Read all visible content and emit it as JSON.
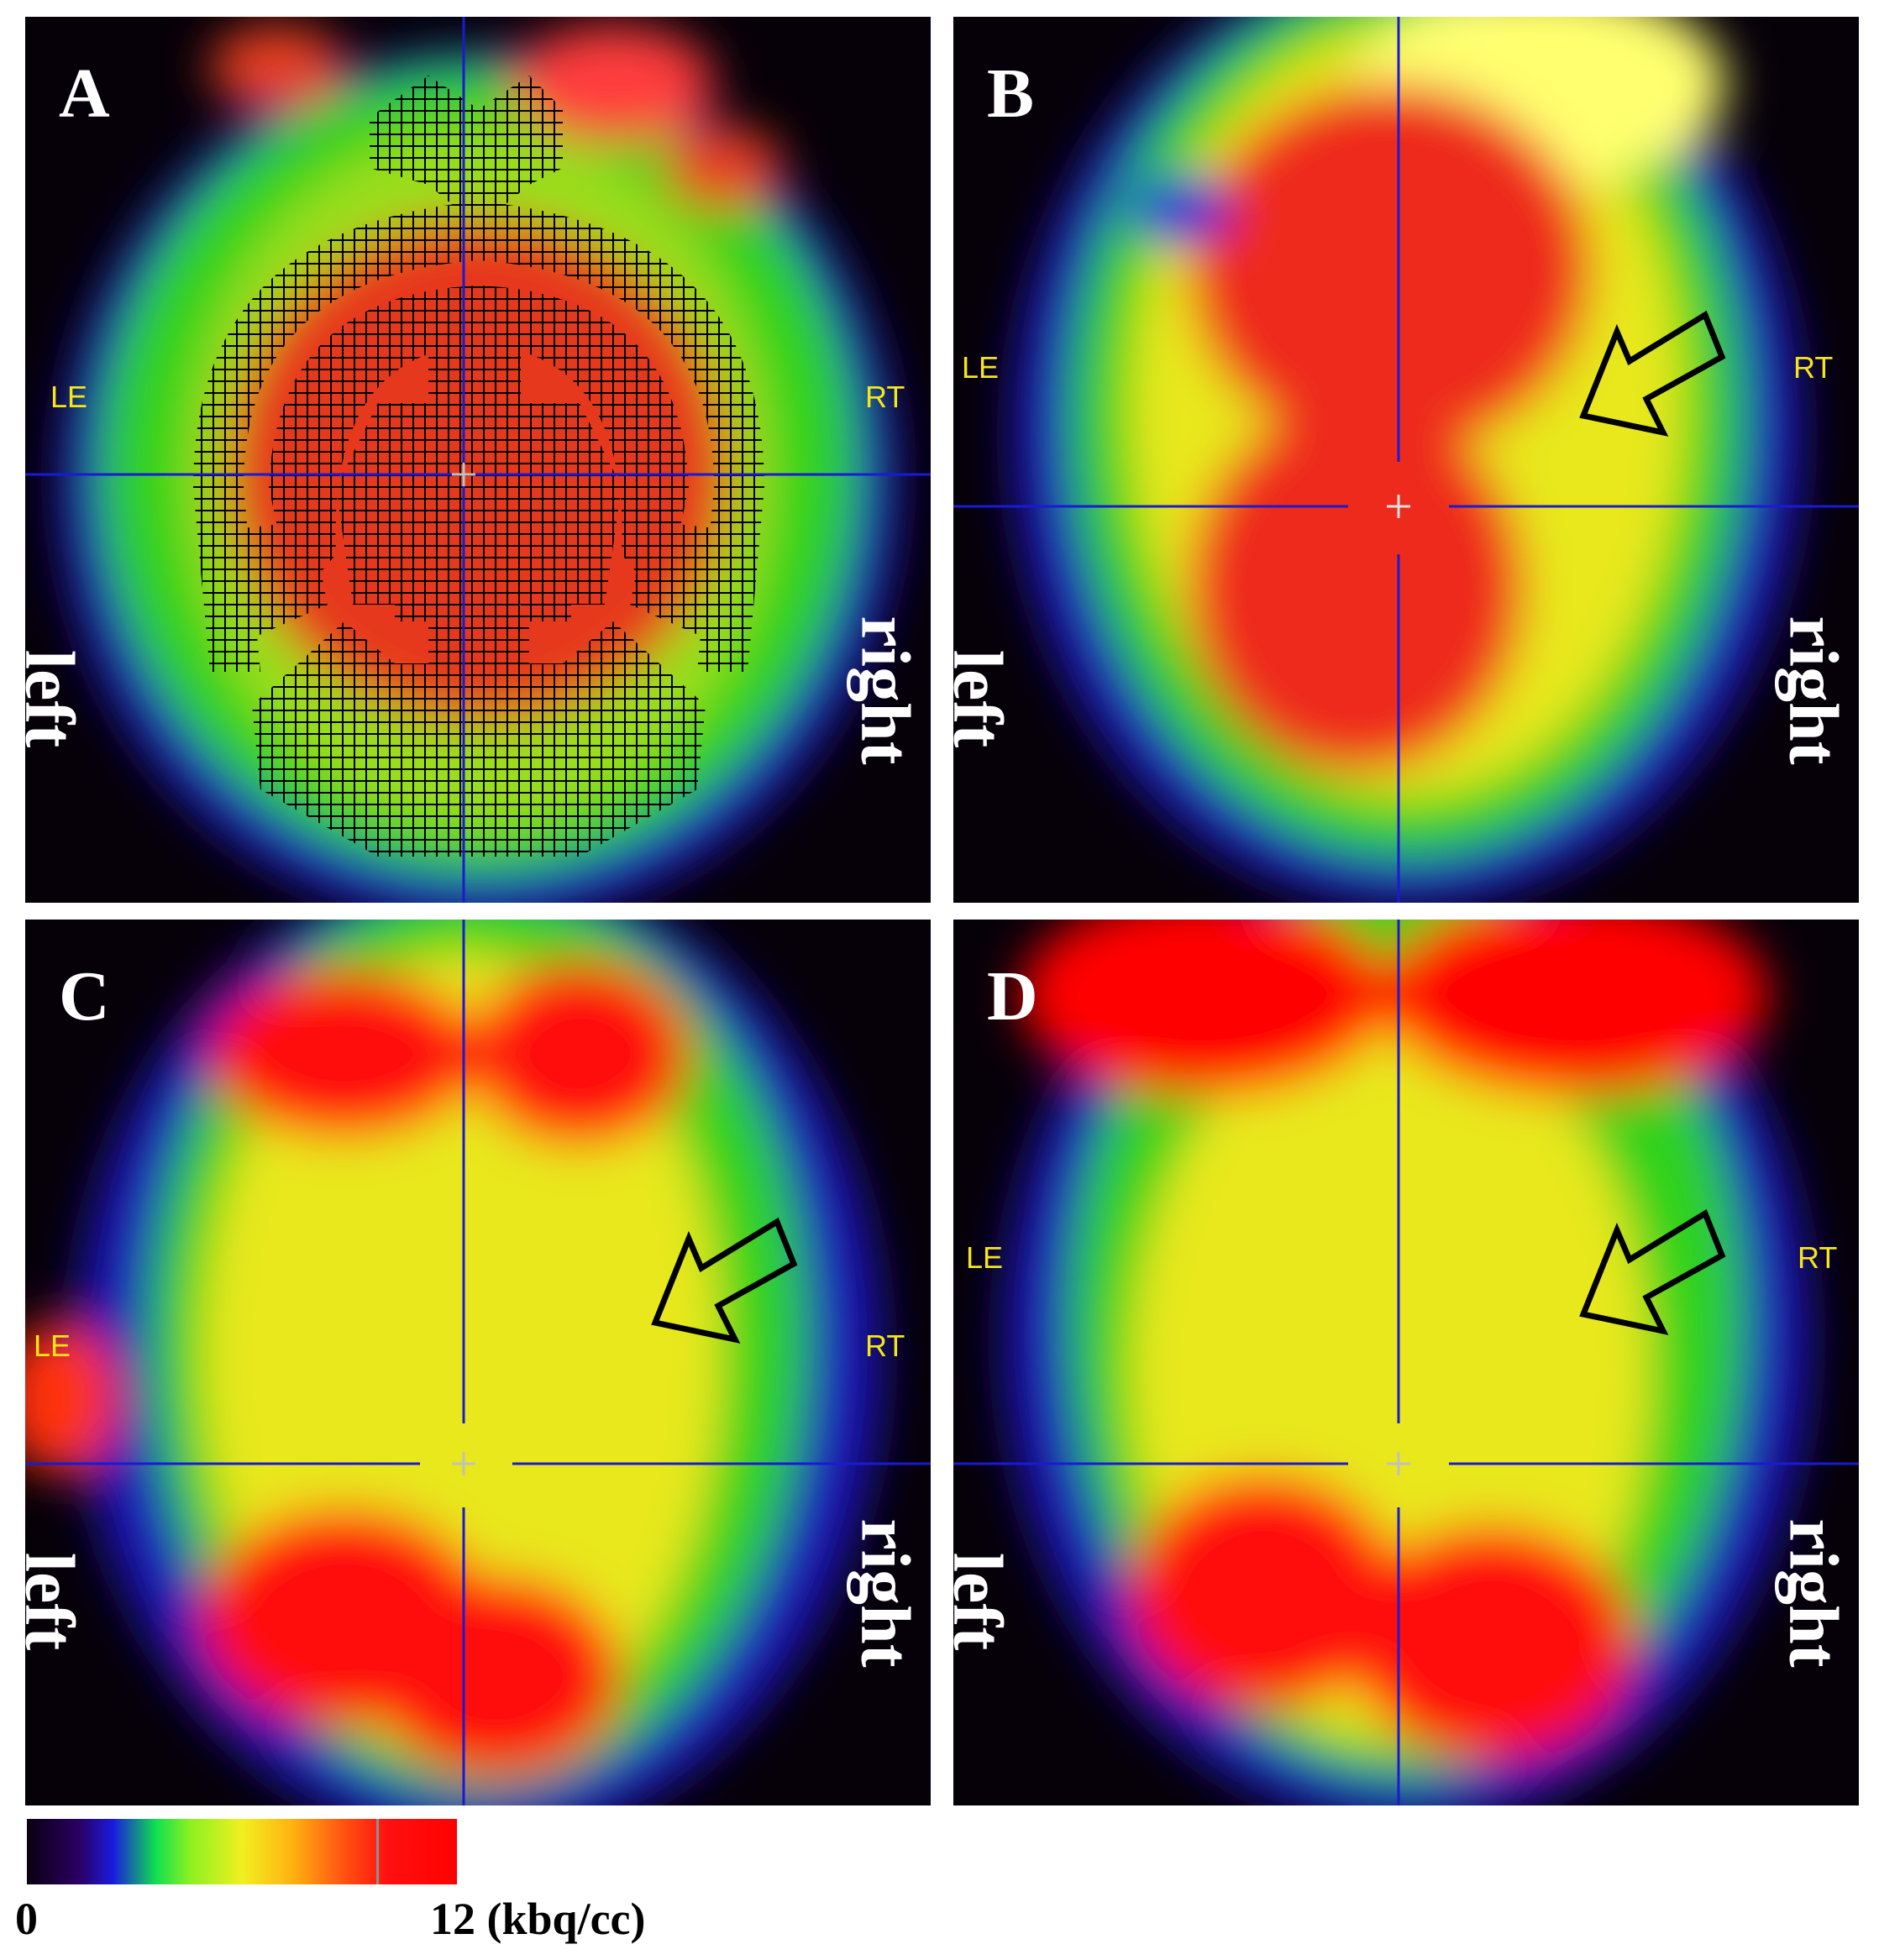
{
  "panels": [
    {
      "letter": "A",
      "left_label": "left",
      "right_label": "right",
      "le": "LE",
      "rt": "RT"
    },
    {
      "letter": "B",
      "left_label": "left",
      "right_label": "right",
      "le": "LE",
      "rt": "RT"
    },
    {
      "letter": "C",
      "left_label": "left",
      "right_label": "right",
      "le": "LE",
      "rt": "RT"
    },
    {
      "letter": "D",
      "left_label": "left",
      "right_label": "right",
      "le": "LE",
      "rt": "RT"
    }
  ],
  "colorbar": {
    "min_label": "0",
    "max_label": "12 (kbq/cc)"
  },
  "colors": {
    "crosshair": "#1a1ad0",
    "arrow_stroke": "#000000",
    "label": "#ffffff",
    "orient": "#f5e61a"
  }
}
